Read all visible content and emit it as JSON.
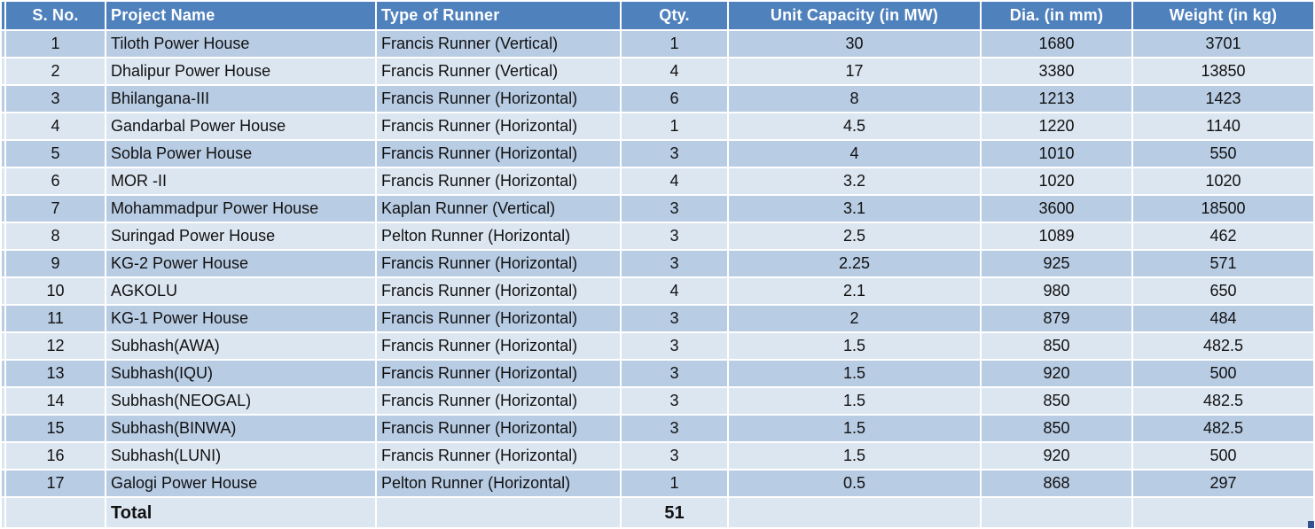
{
  "chart_data": {
    "type": "table",
    "columns": [
      "S. No.",
      "Project Name",
      "Type of Runner",
      "Qty.",
      "Unit Capacity (in MW)",
      "Dia. (in mm)",
      "Weight (in kg)"
    ],
    "rows": [
      [
        "1",
        "Tiloth Power House",
        "Francis Runner (Vertical)",
        "1",
        "30",
        "1680",
        "3701"
      ],
      [
        "2",
        "Dhalipur Power House",
        "Francis Runner (Vertical)",
        "4",
        "17",
        "3380",
        "13850"
      ],
      [
        "3",
        "Bhilangana-III",
        "Francis Runner (Horizontal)",
        "6",
        "8",
        "1213",
        "1423"
      ],
      [
        "4",
        "Gandarbal Power House",
        "Francis Runner (Horizontal)",
        "1",
        "4.5",
        "1220",
        "1140"
      ],
      [
        "5",
        "Sobla Power House",
        "Francis Runner (Horizontal)",
        "3",
        "4",
        "1010",
        "550"
      ],
      [
        "6",
        "MOR -II",
        "Francis Runner (Horizontal)",
        "4",
        "3.2",
        "1020",
        "1020"
      ],
      [
        "7",
        "Mohammadpur Power House",
        "Kaplan Runner (Vertical)",
        "3",
        "3.1",
        "3600",
        "18500"
      ],
      [
        "8",
        "Suringad Power House",
        "Pelton Runner (Horizontal)",
        "3",
        "2.5",
        "1089",
        "462"
      ],
      [
        "9",
        "KG-2 Power House",
        "Francis Runner (Horizontal)",
        "3",
        "2.25",
        "925",
        "571"
      ],
      [
        "10",
        "AGKOLU",
        "Francis Runner (Horizontal)",
        "4",
        "2.1",
        "980",
        "650"
      ],
      [
        "11",
        "KG-1 Power House",
        "Francis Runner (Horizontal)",
        "3",
        "2",
        "879",
        "484"
      ],
      [
        "12",
        "Subhash(AWA)",
        "Francis Runner (Horizontal)",
        "3",
        "1.5",
        "850",
        "482.5"
      ],
      [
        "13",
        "Subhash(IQU)",
        "Francis Runner (Horizontal)",
        "3",
        "1.5",
        "920",
        "500"
      ],
      [
        "14",
        "Subhash(NEOGAL)",
        "Francis Runner (Horizontal)",
        "3",
        "1.5",
        "850",
        "482.5"
      ],
      [
        "15",
        "Subhash(BINWA)",
        "Francis Runner (Horizontal)",
        "3",
        "1.5",
        "850",
        "482.5"
      ],
      [
        "16",
        "Subhash(LUNI)",
        "Francis Runner (Horizontal)",
        "3",
        "1.5",
        "920",
        "500"
      ],
      [
        "17",
        "Galogi Power House",
        "Pelton Runner (Horizontal)",
        "1",
        "0.5",
        "868",
        "297"
      ]
    ],
    "total_row": {
      "label": "Total",
      "qty": "51"
    },
    "title": "",
    "layout_hints": {
      "banded_rows": true,
      "header_row": true,
      "qty_total_column": "Qty."
    }
  },
  "colors": {
    "header_bg": "#4F81BD",
    "band_dark": "#B8CCE4",
    "band_light": "#DCE6F1",
    "header_text": "#FFFFFF",
    "body_text": "#111111",
    "grid_line": "#FFFFFF",
    "fill_handle": "#31538F"
  }
}
